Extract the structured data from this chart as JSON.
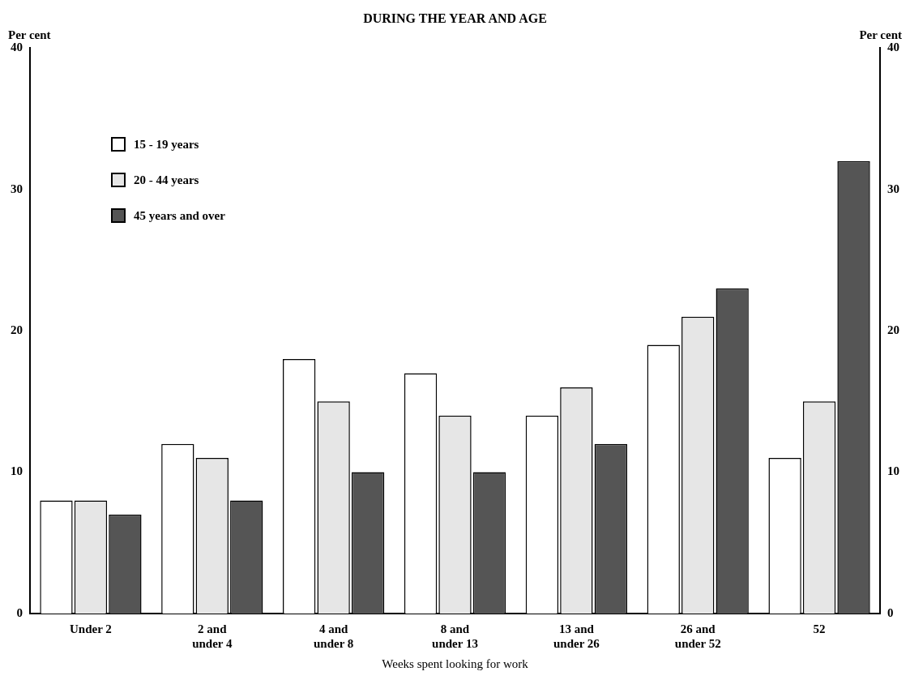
{
  "chart_data": {
    "type": "bar",
    "title": "DURING THE YEAR AND AGE",
    "xlabel": "Weeks spent looking for work",
    "ylabel": "Per cent",
    "y2label": "Per cent",
    "categories": [
      "Under 2",
      "2 and\nunder 4",
      "4 and\nunder 8",
      "8 and\nunder 13",
      "13 and\nunder 26",
      "26 and\nunder 52",
      "52"
    ],
    "series": [
      {
        "name": "15 - 19 years",
        "color": "#ffffff",
        "values": [
          8,
          12,
          18,
          17,
          14,
          19,
          11
        ]
      },
      {
        "name": "20 - 44 years",
        "color": "#e6e6e6",
        "values": [
          8,
          11,
          15,
          14,
          16,
          21,
          15
        ]
      },
      {
        "name": "45 years and over",
        "color": "#555555",
        "values": [
          7,
          8,
          10,
          10,
          12,
          23,
          32
        ]
      }
    ],
    "ylim": [
      0,
      40
    ],
    "yticks": [
      0,
      10,
      20,
      30,
      40
    ],
    "y2lim": [
      0,
      40
    ],
    "y2ticks": [
      0,
      10,
      20,
      30,
      40
    ],
    "grid": false,
    "legend": "top left"
  }
}
